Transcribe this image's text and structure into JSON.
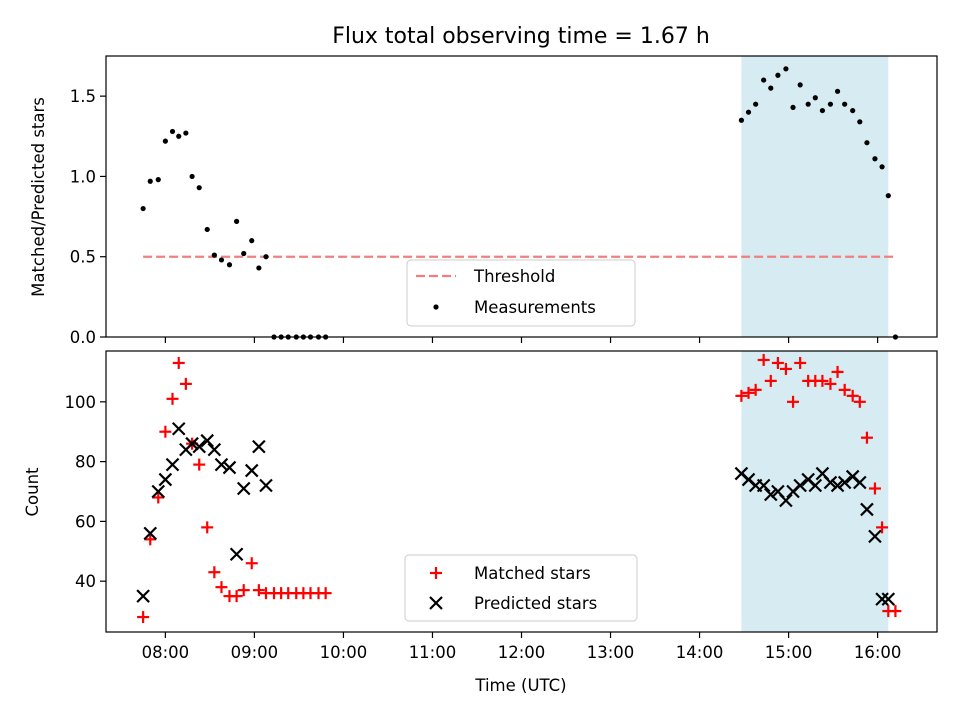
{
  "chart_data": [
    {
      "type": "scatter",
      "title": "Flux total observing time = 1.67 h",
      "ylabel": "Matched/Predicted stars",
      "xlabel": "",
      "xlim": [
        7.333,
        16.667
      ],
      "ylim": [
        0,
        1.75
      ],
      "yticks": [
        0.0,
        0.5,
        1.0,
        1.5
      ],
      "ytick_labels": [
        "0.0",
        "0.5",
        "1.0",
        "1.5"
      ],
      "shaded_interval": [
        14.47,
        16.12
      ],
      "shade_color": "#add8e6",
      "threshold": {
        "label": "Threshold",
        "value": 0.5,
        "x_range": [
          7.75,
          16.2
        ],
        "color": "#f08080"
      },
      "series": [
        {
          "name": "Measurements",
          "color": "#000000",
          "marker": "dot",
          "x": [
            7.75,
            7.83,
            7.92,
            8.0,
            8.08,
            8.15,
            8.23,
            8.3,
            8.38,
            8.47,
            8.55,
            8.63,
            8.72,
            8.8,
            8.88,
            8.97,
            9.05,
            9.13,
            9.22,
            9.3,
            9.38,
            9.47,
            9.55,
            9.63,
            9.72,
            9.8,
            14.47,
            14.55,
            14.63,
            14.72,
            14.8,
            14.88,
            14.97,
            15.05,
            15.13,
            15.22,
            15.3,
            15.38,
            15.47,
            15.55,
            15.63,
            15.72,
            15.8,
            15.88,
            15.97,
            16.05,
            16.12,
            16.2
          ],
          "y": [
            0.8,
            0.97,
            0.98,
            1.22,
            1.28,
            1.25,
            1.27,
            1.0,
            0.93,
            0.67,
            0.51,
            0.48,
            0.45,
            0.72,
            0.52,
            0.6,
            0.43,
            0.5,
            0.0,
            0.0,
            0.0,
            0.0,
            0.0,
            0.0,
            0.0,
            0.0,
            1.35,
            1.4,
            1.45,
            1.6,
            1.55,
            1.63,
            1.67,
            1.43,
            1.57,
            1.45,
            1.49,
            1.41,
            1.45,
            1.53,
            1.45,
            1.41,
            1.34,
            1.21,
            1.11,
            1.06,
            0.88,
            0.0
          ]
        }
      ]
    },
    {
      "type": "scatter",
      "title": "",
      "ylabel": "Count",
      "xlabel": "Time (UTC)",
      "xlim": [
        7.333,
        16.667
      ],
      "ylim": [
        23,
        117
      ],
      "yticks": [
        40,
        60,
        80,
        100
      ],
      "ytick_labels": [
        "40",
        "60",
        "80",
        "100"
      ],
      "xticks": [
        8,
        9,
        10,
        11,
        12,
        13,
        14,
        15,
        16
      ],
      "xtick_labels": [
        "08:00",
        "09:00",
        "10:00",
        "11:00",
        "12:00",
        "13:00",
        "14:00",
        "15:00",
        "16:00"
      ],
      "shaded_interval": [
        14.47,
        16.12
      ],
      "shade_color": "#add8e6",
      "series": [
        {
          "name": "Matched stars",
          "color": "#ff0000",
          "marker": "plus",
          "x": [
            7.75,
            7.83,
            7.92,
            8.0,
            8.08,
            8.15,
            8.23,
            8.3,
            8.38,
            8.47,
            8.55,
            8.63,
            8.72,
            8.8,
            8.88,
            8.97,
            9.05,
            9.13,
            9.22,
            9.3,
            9.38,
            9.47,
            9.55,
            9.63,
            9.72,
            9.8,
            14.47,
            14.55,
            14.63,
            14.72,
            14.8,
            14.88,
            14.97,
            15.05,
            15.13,
            15.22,
            15.3,
            15.38,
            15.47,
            15.55,
            15.63,
            15.72,
            15.8,
            15.88,
            15.97,
            16.05,
            16.12,
            16.2
          ],
          "y": [
            28,
            54,
            68,
            90,
            101,
            113,
            106,
            86,
            79,
            58,
            43,
            38,
            35,
            35,
            37,
            46,
            37,
            36,
            36,
            36,
            36,
            36,
            36,
            36,
            36,
            36,
            102,
            103,
            104,
            114,
            107,
            113,
            111,
            100,
            113,
            107,
            107,
            107,
            106,
            110,
            104,
            102,
            100,
            88,
            71,
            58,
            30,
            30
          ]
        },
        {
          "name": "Predicted stars",
          "color": "#000000",
          "marker": "x",
          "x": [
            7.75,
            7.83,
            7.92,
            8.0,
            8.08,
            8.15,
            8.23,
            8.3,
            8.38,
            8.47,
            8.55,
            8.63,
            8.72,
            8.8,
            8.88,
            8.97,
            9.05,
            9.13,
            14.47,
            14.55,
            14.63,
            14.72,
            14.8,
            14.88,
            14.97,
            15.05,
            15.13,
            15.22,
            15.3,
            15.38,
            15.47,
            15.55,
            15.63,
            15.72,
            15.8,
            15.88,
            15.97,
            16.05,
            16.12
          ],
          "y": [
            35,
            56,
            70,
            74,
            79,
            91,
            84,
            86,
            85,
            87,
            84,
            79,
            78,
            49,
            71,
            77,
            85,
            72,
            76,
            74,
            72,
            72,
            69,
            70,
            67,
            70,
            72,
            74,
            72,
            76,
            73,
            72,
            73,
            75,
            73,
            64,
            55,
            34,
            34
          ]
        }
      ]
    }
  ]
}
